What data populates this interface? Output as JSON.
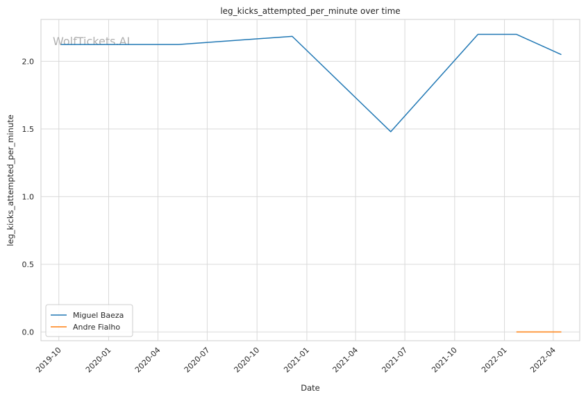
{
  "chart_data": {
    "type": "line",
    "title": "leg_kicks_attempted_per_minute over time",
    "xlabel": "Date",
    "ylabel": "leg_kicks_attempted_per_minute",
    "watermark": "WolfTickets.AI",
    "x_ticks": [
      "2019-10",
      "2020-01",
      "2020-04",
      "2020-07",
      "2020-10",
      "2021-01",
      "2021-04",
      "2021-07",
      "2021-10",
      "2022-01",
      "2022-04"
    ],
    "y_ticks": [
      "0.0",
      "0.5",
      "1.0",
      "1.5",
      "2.0"
    ],
    "ylim": [
      -0.065,
      2.31
    ],
    "xlim": [
      "2019-08-29",
      "2022-05-20"
    ],
    "grid": true,
    "legend_position": "lower-left",
    "series": [
      {
        "name": "Miguel Baeza",
        "color": "#1f77b4",
        "points": [
          {
            "x": "2019-10-05",
            "y": 2.125
          },
          {
            "x": "2020-05-09",
            "y": 2.125
          },
          {
            "x": "2020-12-05",
            "y": 2.185
          },
          {
            "x": "2021-06-05",
            "y": 1.48
          },
          {
            "x": "2021-11-13",
            "y": 2.2
          },
          {
            "x": "2022-01-23",
            "y": 2.2
          },
          {
            "x": "2022-04-16",
            "y": 2.05
          }
        ]
      },
      {
        "name": "Andre Fialho",
        "color": "#ff7f0e",
        "points": [
          {
            "x": "2022-01-23",
            "y": 0.0
          },
          {
            "x": "2022-04-16",
            "y": 0.0
          }
        ]
      }
    ]
  }
}
